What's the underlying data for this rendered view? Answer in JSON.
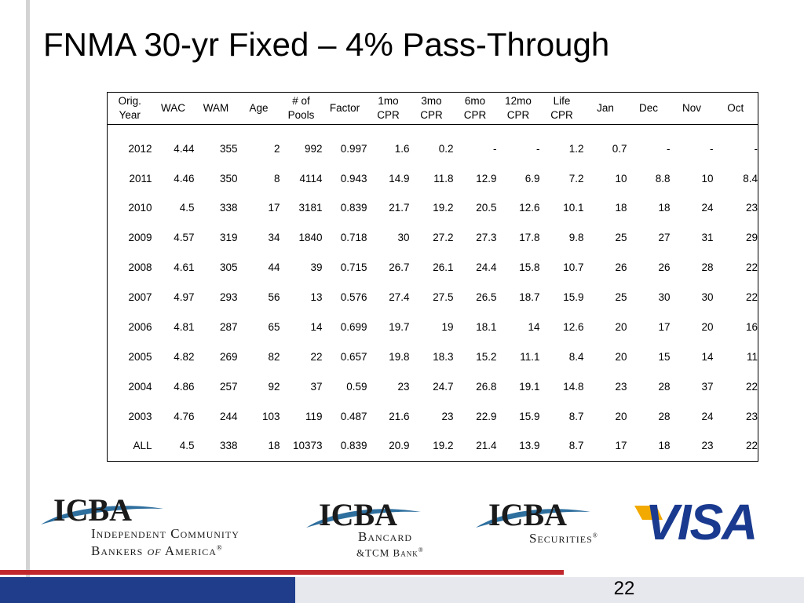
{
  "slide": {
    "title": "FNMA 30-yr Fixed – 4% Pass-Through",
    "page_number": "22"
  },
  "table": {
    "headers": [
      [
        "Orig.",
        "Year"
      ],
      [
        "WAC"
      ],
      [
        "WAM"
      ],
      [
        "Age"
      ],
      [
        "# of",
        "Pools"
      ],
      [
        "Factor"
      ],
      [
        "1mo",
        "CPR"
      ],
      [
        "3mo",
        "CPR"
      ],
      [
        "6mo",
        "CPR"
      ],
      [
        "12mo",
        "CPR"
      ],
      [
        "Life",
        "CPR"
      ],
      [
        "Jan"
      ],
      [
        "Dec"
      ],
      [
        "Nov"
      ],
      [
        "Oct"
      ]
    ],
    "rows": [
      [
        "2012",
        "4.44",
        "355",
        "2",
        "992",
        "0.997",
        "1.6",
        "0.2",
        "-",
        "-",
        "1.2",
        "0.7",
        "-",
        "-",
        "-"
      ],
      [
        "2011",
        "4.46",
        "350",
        "8",
        "4114",
        "0.943",
        "14.9",
        "11.8",
        "12.9",
        "6.9",
        "7.2",
        "10",
        "8.8",
        "10",
        "8.4"
      ],
      [
        "2010",
        "4.5",
        "338",
        "17",
        "3181",
        "0.839",
        "21.7",
        "19.2",
        "20.5",
        "12.6",
        "10.1",
        "18",
        "18",
        "24",
        "23"
      ],
      [
        "2009",
        "4.57",
        "319",
        "34",
        "1840",
        "0.718",
        "30",
        "27.2",
        "27.3",
        "17.8",
        "9.8",
        "25",
        "27",
        "31",
        "29"
      ],
      [
        "2008",
        "4.61",
        "305",
        "44",
        "39",
        "0.715",
        "26.7",
        "26.1",
        "24.4",
        "15.8",
        "10.7",
        "26",
        "26",
        "28",
        "22"
      ],
      [
        "2007",
        "4.97",
        "293",
        "56",
        "13",
        "0.576",
        "27.4",
        "27.5",
        "26.5",
        "18.7",
        "15.9",
        "25",
        "30",
        "30",
        "22"
      ],
      [
        "2006",
        "4.81",
        "287",
        "65",
        "14",
        "0.699",
        "19.7",
        "19",
        "18.1",
        "14",
        "12.6",
        "20",
        "17",
        "20",
        "16"
      ],
      [
        "2005",
        "4.82",
        "269",
        "82",
        "22",
        "0.657",
        "19.8",
        "18.3",
        "15.2",
        "11.1",
        "8.4",
        "20",
        "15",
        "14",
        "11"
      ],
      [
        "2004",
        "4.86",
        "257",
        "92",
        "37",
        "0.59",
        "23",
        "24.7",
        "26.8",
        "19.1",
        "14.8",
        "23",
        "28",
        "37",
        "22"
      ],
      [
        "2003",
        "4.76",
        "244",
        "103",
        "119",
        "0.487",
        "21.6",
        "23",
        "22.9",
        "15.9",
        "8.7",
        "20",
        "28",
        "24",
        "23"
      ],
      [
        "ALL",
        "4.5",
        "338",
        "18",
        "10373",
        "0.839",
        "20.9",
        "19.2",
        "21.4",
        "13.9",
        "8.7",
        "17",
        "18",
        "23",
        "22"
      ]
    ]
  },
  "logos": {
    "icba_main": {
      "mark": "ICBA",
      "line1": "Independent Community",
      "line2_a": "Bankers",
      "line2_b": "of",
      "line2_c": "America",
      "reg": "®"
    },
    "icba_bancard": {
      "mark": "ICBA",
      "line1": "Bancard",
      "line2": "&TCM Bank",
      "reg": "®"
    },
    "icba_securities": {
      "mark": "ICBA",
      "line1": "Securities",
      "reg": "®"
    },
    "visa": {
      "mark": "VISA"
    }
  },
  "colors": {
    "accent_red": "#c0272d",
    "accent_blue": "#1f3d8a",
    "visa_blue": "#1a3a8f",
    "visa_gold": "#f2a900",
    "icba_teal": "#2e6f9e"
  }
}
